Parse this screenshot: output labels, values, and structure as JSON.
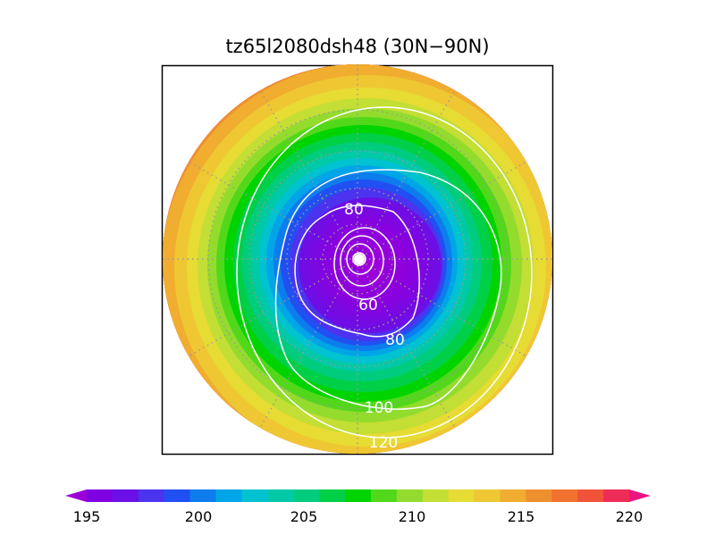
{
  "map": {
    "title": "tz65l2080dsh48 (30N−90N)",
    "projection": "north-polar-stereographic",
    "field_min": 195,
    "field_max": 220,
    "contour_labels": [
      "80",
      "60",
      "80",
      "100",
      "120"
    ]
  },
  "colorbar": {
    "ticks": [
      "195",
      "200",
      "205",
      "210",
      "215",
      "220"
    ],
    "colors": [
      "#9a00d8",
      "#7f00e0",
      "#6a10e6",
      "#4c33ef",
      "#2150f2",
      "#0d7dee",
      "#00a5e8",
      "#00c2d0",
      "#00c9a8",
      "#00cc7e",
      "#00d048",
      "#00d400",
      "#52d81a",
      "#93dc2e",
      "#c3de34",
      "#e6dc34",
      "#efc733",
      "#f0ad30",
      "#ef902f",
      "#f1712f",
      "#f1533a",
      "#ef2c57",
      "#eb1481"
    ]
  }
}
